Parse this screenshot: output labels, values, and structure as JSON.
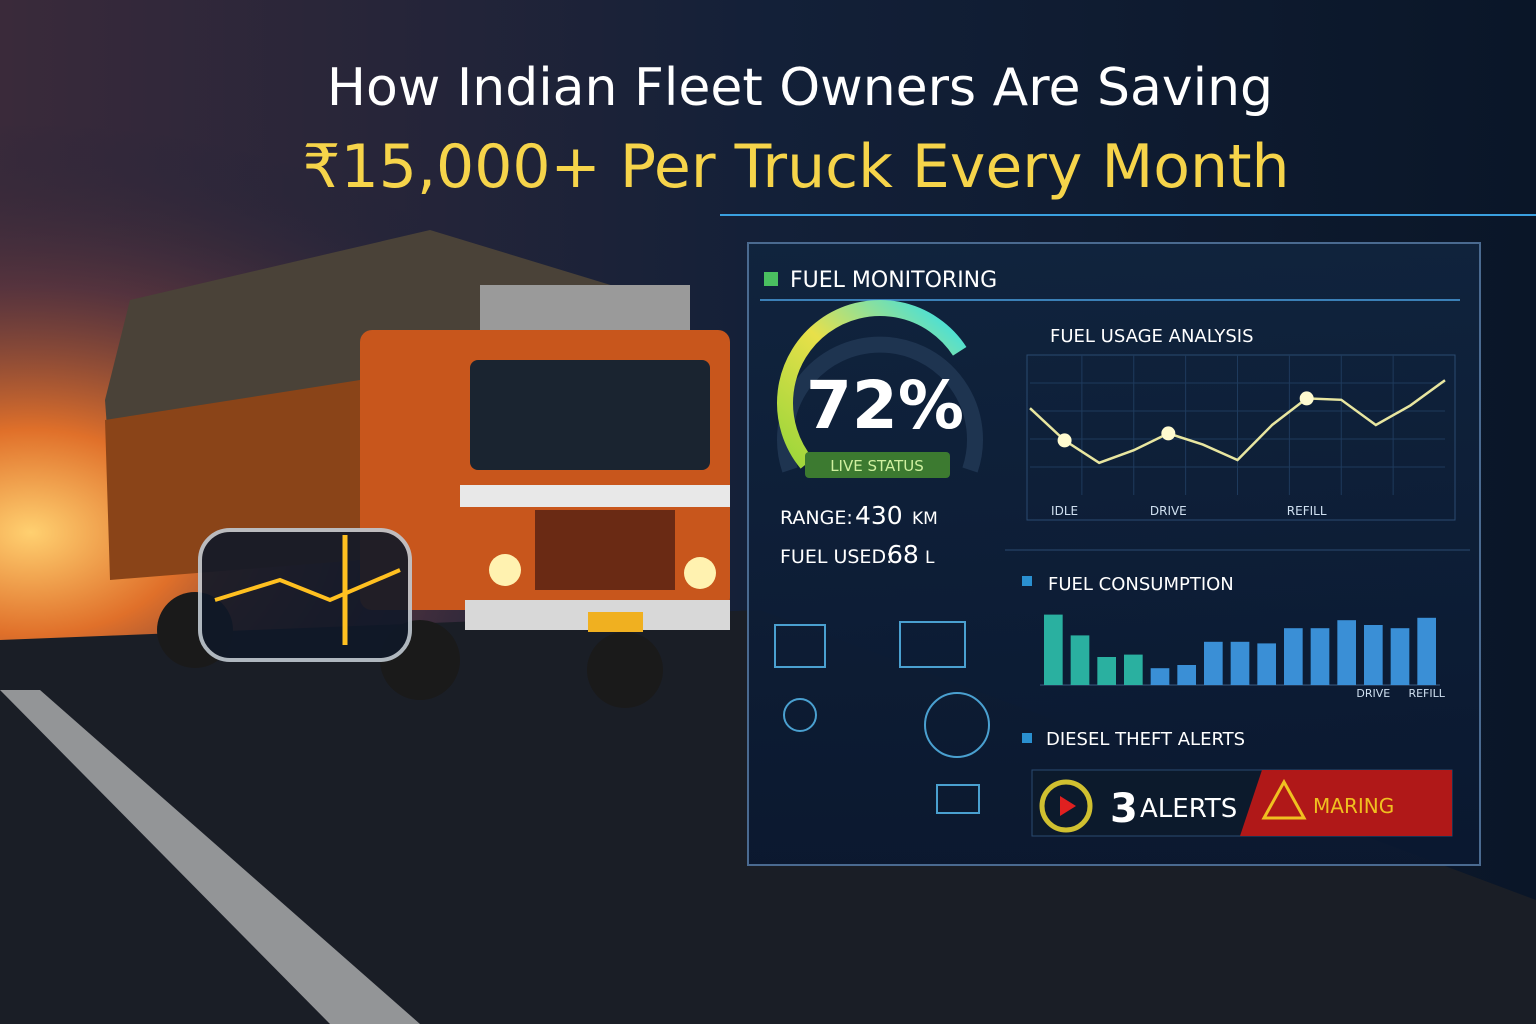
{
  "header": {
    "title_line1": "How Indian Fleet Owners Are Saving",
    "title_line2": "₹15,000+ Per Truck Every Month"
  },
  "dashboard": {
    "fuel_monitoring": {
      "title": "FUEL MONITORING",
      "gauge": {
        "value": 72,
        "label": "72%",
        "max": 100
      },
      "status": "LIVE STATUS",
      "range_label": "RANGE:",
      "range_value": "430",
      "range_unit": "KM",
      "used_label": "FUEL USED:",
      "used_value": "68",
      "used_unit": "L"
    },
    "usage_chart": {
      "type": "line",
      "title": "FUEL USAGE ANALYSIS",
      "categories": [
        null,
        "IDLE",
        null,
        null,
        "DRIVE",
        null,
        null,
        null,
        "REFILL",
        null,
        null,
        null,
        null
      ],
      "values": [
        62,
        39,
        23,
        32,
        44,
        36,
        25,
        50,
        69,
        68,
        50,
        64,
        82
      ],
      "ylim": [
        0,
        100
      ],
      "color": "#e8e6a0"
    },
    "consumption_chart": {
      "type": "bar",
      "title": "FUEL CONSUMPTION",
      "categories": [
        null,
        null,
        null,
        null,
        null,
        null,
        null,
        null,
        null,
        null,
        null,
        null,
        "DRIVE",
        null,
        "REFILL"
      ],
      "values": [
        88,
        62,
        35,
        38,
        21,
        25,
        54,
        54,
        52,
        71,
        71,
        81,
        75,
        71,
        84
      ],
      "ylim": [
        0,
        100
      ],
      "color": "#3a8fd6"
    },
    "alerts": {
      "title": "DIESEL THEFT ALERTS",
      "count": "3",
      "label": "ALERTS",
      "warning": "MARING"
    }
  }
}
